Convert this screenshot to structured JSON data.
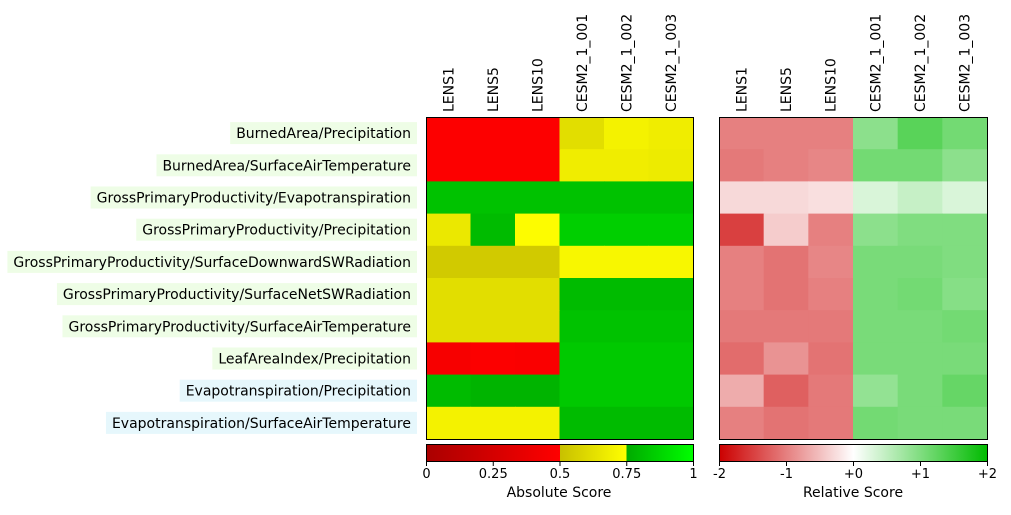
{
  "chart_data": {
    "type": "heatmap",
    "columns": [
      "LENS1",
      "LENS5",
      "LENS10",
      "CESM2_1_001",
      "CESM2_1_002",
      "CESM2_1_003"
    ],
    "rows": [
      {
        "label": "BurnedArea/Precipitation",
        "highlight": "#eefde6"
      },
      {
        "label": "BurnedArea/SurfaceAirTemperature",
        "highlight": "#eefde6"
      },
      {
        "label": "GrossPrimaryProductivity/Evapotranspiration",
        "highlight": "#eefde6"
      },
      {
        "label": "GrossPrimaryProductivity/Precipitation",
        "highlight": "#eefde6"
      },
      {
        "label": "GrossPrimaryProductivity/SurfaceDownwardSWRadiation",
        "highlight": "#eefde6"
      },
      {
        "label": "GrossPrimaryProductivity/SurfaceNetSWRadiation",
        "highlight": "#eefde6"
      },
      {
        "label": "GrossPrimaryProductivity/SurfaceAirTemperature",
        "highlight": "#eefde6"
      },
      {
        "label": "LeafAreaIndex/Precipitation",
        "highlight": "#eefde6"
      },
      {
        "label": "Evapotranspiration/Precipitation",
        "highlight": "#e6f7fc"
      },
      {
        "label": "Evapotranspiration/SurfaceAirTemperature",
        "highlight": "#e6f7fc"
      }
    ],
    "absolute": {
      "title": "Absolute Score",
      "range": [
        0,
        1
      ],
      "ticks": [
        "0",
        "0.25",
        "0.5",
        "0.75",
        "1"
      ],
      "tick_values": [
        0,
        0.25,
        0.5,
        0.75,
        1
      ],
      "colormap": [
        {
          "v": 0.0,
          "c": "#aa0000"
        },
        {
          "v": 0.5,
          "c": "#ff0000"
        },
        {
          "v": 0.5,
          "c": "#c8c000"
        },
        {
          "v": 0.75,
          "c": "#ffff00"
        },
        {
          "v": 0.75,
          "c": "#00aa00"
        },
        {
          "v": 1.0,
          "c": "#00ff00"
        }
      ],
      "values": [
        [
          0.49,
          0.49,
          0.49,
          0.62,
          0.7,
          0.68
        ],
        [
          0.49,
          0.49,
          0.49,
          0.68,
          0.68,
          0.67
        ],
        [
          0.82,
          0.82,
          0.82,
          0.82,
          0.82,
          0.82
        ],
        [
          0.66,
          0.8,
          0.74,
          0.86,
          0.86,
          0.86
        ],
        [
          0.54,
          0.54,
          0.54,
          0.72,
          0.72,
          0.72
        ],
        [
          0.62,
          0.62,
          0.62,
          0.8,
          0.8,
          0.8
        ],
        [
          0.62,
          0.62,
          0.62,
          0.82,
          0.82,
          0.82
        ],
        [
          0.45,
          0.48,
          0.47,
          0.84,
          0.84,
          0.84
        ],
        [
          0.8,
          0.78,
          0.78,
          0.84,
          0.84,
          0.84
        ],
        [
          0.7,
          0.7,
          0.7,
          0.8,
          0.8,
          0.8
        ]
      ]
    },
    "relative": {
      "title": "Relative Score",
      "range": [
        -2,
        2
      ],
      "ticks": [
        "-2",
        "-1",
        "+0",
        "+1",
        "+2"
      ],
      "tick_values": [
        -2,
        -1,
        0,
        1,
        2
      ],
      "colormap": [
        {
          "v": -2.0,
          "c": "#cc0000"
        },
        {
          "v": 0.0,
          "c": "#ffffff"
        },
        {
          "v": 2.0,
          "c": "#00bb00"
        }
      ],
      "values": [
        [
          -1.0,
          -1.0,
          -1.0,
          0.9,
          1.3,
          1.1
        ],
        [
          -1.05,
          -1.0,
          -0.95,
          1.1,
          1.1,
          0.9
        ],
        [
          -0.3,
          -0.3,
          -0.25,
          0.3,
          0.45,
          0.3
        ],
        [
          -1.5,
          -0.4,
          -1.0,
          0.9,
          1.0,
          1.0
        ],
        [
          -1.0,
          -1.1,
          -0.95,
          1.05,
          1.05,
          1.0
        ],
        [
          -1.0,
          -1.1,
          -1.0,
          1.05,
          1.1,
          0.95
        ],
        [
          -1.05,
          -1.05,
          -1.05,
          1.05,
          1.05,
          1.1
        ],
        [
          -1.15,
          -0.85,
          -1.1,
          1.05,
          1.05,
          1.05
        ],
        [
          -0.65,
          -1.25,
          -1.05,
          0.85,
          1.05,
          1.2
        ],
        [
          -1.0,
          -1.1,
          -1.05,
          1.1,
          1.05,
          1.05
        ]
      ]
    }
  }
}
